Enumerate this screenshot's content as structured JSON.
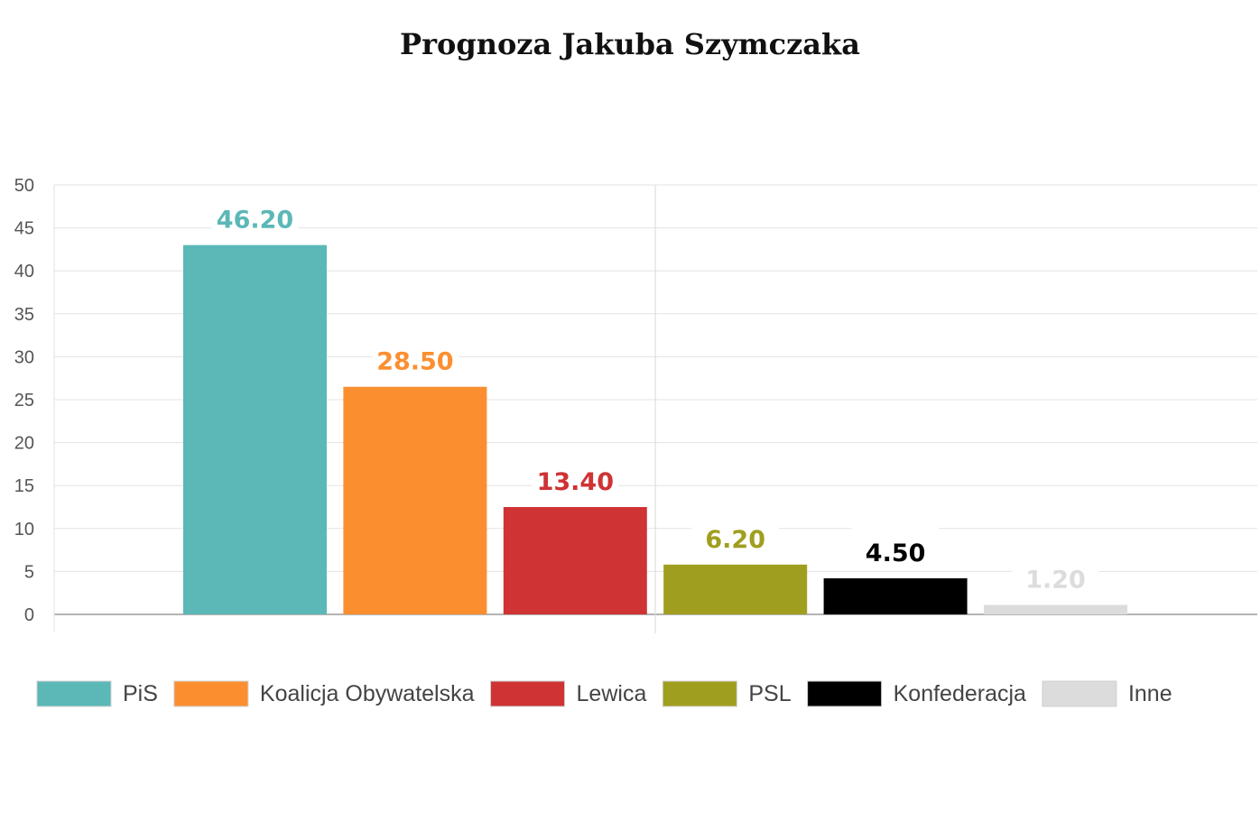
{
  "chart_data": {
    "type": "bar",
    "title": "Prognoza Jakuba Szymczaka",
    "xlabel": "",
    "ylabel": "",
    "ylim": [
      0,
      50
    ],
    "yticks": [
      "0",
      "5",
      "10",
      "15",
      "20",
      "25",
      "30",
      "35",
      "40",
      "45",
      "50"
    ],
    "grid": true,
    "legend_position": "bottom",
    "series": [
      {
        "name": "PiS",
        "value": 43.0,
        "label": "46.20",
        "color": "#5bb8b7"
      },
      {
        "name": "Koalicja Obywatelska",
        "value": 26.5,
        "label": "28.50",
        "color": "#fb8f30"
      },
      {
        "name": "Lewica",
        "value": 12.5,
        "label": "13.40",
        "color": "#cf3334"
      },
      {
        "name": "PSL",
        "value": 5.8,
        "label": "6.20",
        "color": "#a09e1e"
      },
      {
        "name": "Konfederacja",
        "value": 4.2,
        "label": "4.50",
        "color": "#000000"
      },
      {
        "name": "Inne",
        "value": 1.1,
        "label": "1.20",
        "color": "#dcdcdc"
      }
    ]
  }
}
